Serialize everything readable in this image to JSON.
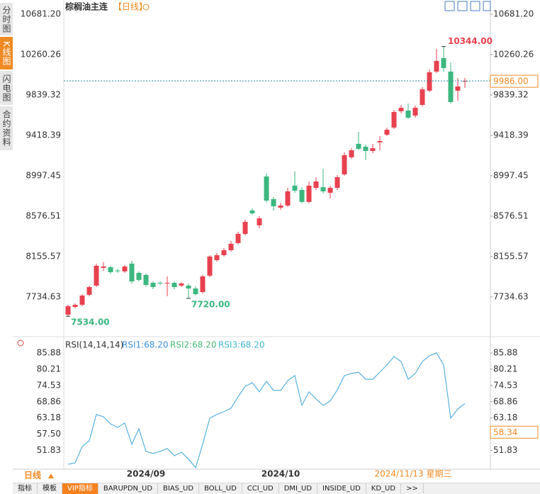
{
  "ui": {
    "sidebar": [
      "分时图",
      "K线图",
      "闪电图",
      "合约资料"
    ],
    "active_side": 1,
    "period_button": "日线",
    "active_tab": 2,
    "tabs": [
      "指标",
      "模板",
      "VIP指标",
      "BARUPDN_UD",
      "BIAS_UD",
      "BOLL_UD",
      "CCI_UD",
      "DMI_UD",
      "INSIDE_UD",
      "KD_UD",
      ">>"
    ]
  },
  "chart_data": [
    {
      "type": "candlestick",
      "title": "棕榈油主连",
      "subtitle": "【日线】",
      "categories": [
        null,
        null,
        null,
        null,
        null,
        null,
        null,
        null,
        null,
        null,
        null,
        "2024/09",
        null,
        null,
        null,
        null,
        null,
        null,
        null,
        null,
        null,
        null,
        null,
        null,
        null,
        null,
        null,
        null,
        null,
        null,
        "2024/10",
        null,
        null,
        null,
        null,
        null,
        null,
        null,
        null,
        null,
        null,
        null,
        null,
        null,
        null,
        null,
        null,
        null,
        null,
        null,
        null,
        null,
        null,
        null,
        null,
        null,
        null
      ],
      "open": [
        7550,
        7631,
        7653,
        7757,
        7853,
        8038,
        8045,
        8010,
        8001,
        8082,
        7986,
        7964,
        7882,
        7882,
        7875,
        7882,
        7853,
        7853,
        7823,
        7786,
        7956,
        8119,
        8170,
        8222,
        8296,
        8392,
        8636,
        8481,
        8990,
        8754,
        8665,
        8687,
        8894,
        8850,
        8725,
        8872,
        8879,
        8820,
        8872,
        9012,
        9190,
        9330,
        9300,
        9256,
        9345,
        9426,
        9500,
        9670,
        9677,
        9625,
        9736,
        9884,
        10083,
        10223,
        10083,
        9884,
        9978
      ],
      "high": [
        7653,
        7668,
        7764,
        7853,
        8082,
        8097,
        8060,
        8030,
        8067,
        8111,
        8001,
        7978,
        7897,
        7897,
        7949,
        7897,
        7890,
        7875,
        7845,
        7964,
        8170,
        8193,
        8244,
        8318,
        8414,
        8540,
        8658,
        8577,
        9020,
        8776,
        8717,
        8872,
        9042,
        8879,
        8938,
        8983,
        9071,
        8894,
        9005,
        9241,
        9285,
        9455,
        9322,
        9330,
        9411,
        9500,
        9684,
        9736,
        9751,
        9729,
        9921,
        10105,
        10319,
        10344,
        10179,
        10017,
        10017
      ],
      "low": [
        7534,
        7616,
        7639,
        7742,
        7838,
        8008,
        7978,
        7986,
        7986,
        7875,
        7897,
        7845,
        7816,
        7860,
        7742,
        7816,
        7838,
        7720,
        7749,
        7772,
        7941,
        8104,
        8156,
        8207,
        8281,
        8377,
        8591,
        8451,
        8717,
        8636,
        8643,
        8673,
        8820,
        8710,
        8710,
        8850,
        8813,
        8761,
        8850,
        8998,
        9175,
        9263,
        9160,
        9234,
        9263,
        9411,
        9485,
        9647,
        9588,
        9603,
        9721,
        9869,
        10068,
        10083,
        9751,
        9780,
        9913
      ],
      "close": [
        7639,
        7653,
        7749,
        7838,
        8060,
        8052,
        7993,
        8008,
        8052,
        7897,
        7912,
        7860,
        7838,
        7875,
        7882,
        7838,
        7875,
        7823,
        7764,
        7949,
        8156,
        8170,
        8222,
        8289,
        8392,
        8517,
        8606,
        8554,
        8739,
        8680,
        8687,
        8835,
        8842,
        8725,
        8894,
        8938,
        8835,
        8872,
        8983,
        9212,
        9263,
        9278,
        9256,
        9285,
        9359,
        9477,
        9662,
        9706,
        9603,
        9706,
        9898,
        10076,
        10194,
        10120,
        9766,
        9928,
        9986
      ],
      "up_color": "#e8414f",
      "down_color": "#3cb77f",
      "ylim": [
        7358,
        10792
      ],
      "yticks": [
        {
          "value": 10681.2,
          "label": "10681.20"
        },
        {
          "value": 10260.26,
          "label": "10260.26"
        },
        {
          "value": 9839.32,
          "label": "9839.32"
        },
        {
          "value": 9418.39,
          "label": "9418.39"
        },
        {
          "value": 8997.45,
          "label": "8997.45"
        },
        {
          "value": 8576.51,
          "label": "8576.51"
        },
        {
          "value": 8155.57,
          "label": "8155.57"
        },
        {
          "value": 7734.63,
          "label": "7734.63"
        }
      ],
      "annotations": [
        {
          "value": 10344,
          "label": "10344.00"
        },
        {
          "value": 7720,
          "label": "7720.00"
        },
        {
          "value": 7534,
          "label": "7534.00"
        }
      ],
      "last_price": {
        "value": 9986,
        "label": "9986.00"
      },
      "crosshair_date": "2024/11/13 星期三"
    },
    {
      "type": "line",
      "title": "RSI(14,14,14)",
      "legend": [
        {
          "name": "RSI1:68.20",
          "color": "#3b8fd8"
        },
        {
          "name": "RSI2:68.20",
          "color": "#4cb87a"
        },
        {
          "name": "RSI3:68.20",
          "color": "#46b6d2"
        }
      ],
      "color": "#5ab2de",
      "values": [
        47.0,
        47.5,
        53.2,
        55.2,
        64.4,
        63.6,
        61.1,
        59.9,
        61.4,
        54.0,
        59.4,
        51.5,
        50.8,
        51.5,
        52.5,
        50.0,
        51.2,
        48.8,
        45.8,
        54.0,
        63.1,
        64.4,
        65.4,
        66.6,
        70.6,
        74.2,
        75.5,
        72.3,
        76.0,
        72.8,
        72.8,
        76.2,
        78.0,
        67.6,
        72.3,
        69.8,
        67.6,
        69.1,
        73.0,
        78.0,
        78.7,
        79.2,
        76.7,
        76.7,
        79.2,
        81.7,
        84.6,
        82.9,
        76.7,
        78.7,
        82.9,
        84.9,
        85.9,
        81.7,
        63.1,
        66.3,
        68.2
      ],
      "ylim": [
        45.29,
        87.86
      ],
      "yticks": [
        85.88,
        80.21,
        74.53,
        68.86,
        63.18,
        {
          "value": 57.5,
          "label": "57.50"
        },
        51.83
      ],
      "crosshair_value": 58.34
    }
  ]
}
